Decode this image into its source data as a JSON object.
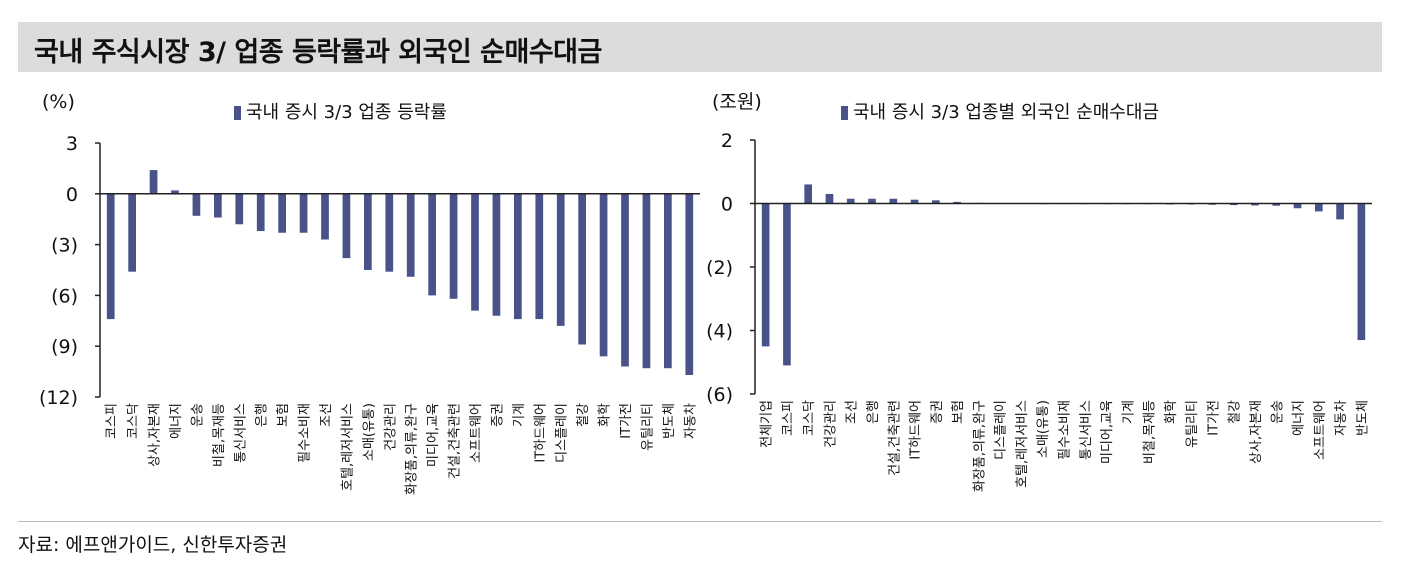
{
  "page": {
    "title": "국내 주식시장 3/ 업종 등락률과 외국인 순매수대금",
    "source": "자료: 에프앤가이드, 신한투자증권"
  },
  "colors": {
    "bar": "#4a5389",
    "axis": "#222222",
    "title_bg": "#dcdcdc"
  },
  "chart_data": [
    {
      "type": "bar",
      "unit": "(%)",
      "legend": "국내 증시 3/3 업종 등락률",
      "ylim": [
        -12,
        3
      ],
      "yticks": [
        3,
        0,
        -3,
        -6,
        -9,
        -12
      ],
      "ytick_labels": [
        "3",
        "0",
        "(3)",
        "(6)",
        "(9)",
        "(12)"
      ],
      "categories": [
        "코스피",
        "코스닥",
        "상사,자본재",
        "에너지",
        "운송",
        "비철,목재등",
        "통신서비스",
        "은행",
        "보험",
        "필수소비재",
        "조선",
        "호텔,레저서비스",
        "소매(유통)",
        "건강관리",
        "화장품,의류,완구",
        "미디어,교육",
        "건설,건축관련",
        "소프트웨어",
        "증권",
        "기계",
        "IT하드웨어",
        "디스플레이",
        "철강",
        "화학",
        "IT가전",
        "유틸리티",
        "반도체",
        "자동차"
      ],
      "values": [
        -7.4,
        -4.6,
        1.4,
        0.2,
        -1.3,
        -1.4,
        -1.8,
        -2.2,
        -2.3,
        -2.3,
        -2.7,
        -3.8,
        -4.5,
        -4.6,
        -4.9,
        -6.0,
        -6.2,
        -6.9,
        -7.2,
        -7.4,
        -7.4,
        -7.8,
        -8.9,
        -9.6,
        -10.2,
        -10.3,
        -10.3,
        -10.7
      ]
    },
    {
      "type": "bar",
      "unit": "(조원)",
      "legend": "국내 증시 3/3 업종별 외국인 순매수대금",
      "ylim": [
        -6,
        2
      ],
      "yticks": [
        2,
        0,
        -2,
        -4,
        -6
      ],
      "ytick_labels": [
        "2",
        "0",
        "(2)",
        "(4)",
        "(6)"
      ],
      "categories": [
        "전체기업",
        "코스피",
        "코스닥",
        "건강관리",
        "조선",
        "은행",
        "건설,건축관련",
        "IT하드웨어",
        "증권",
        "보험",
        "화장품,의류,완구",
        "디스플레이",
        "호텔,레저서비스",
        "소매(유통)",
        "필수소비재",
        "통신서비스",
        "미디어,교육",
        "기계",
        "비철,목재등",
        "화학",
        "유틸리티",
        "IT가전",
        "철강",
        "상사,자본재",
        "운송",
        "에너지",
        "소프트웨어",
        "자동차",
        "반도체"
      ],
      "values": [
        -4.5,
        -5.1,
        0.6,
        0.3,
        0.15,
        0.15,
        0.15,
        0.12,
        0.1,
        0.05,
        0.02,
        0.01,
        0.01,
        0.0,
        0.0,
        -0.01,
        -0.01,
        -0.02,
        -0.02,
        -0.03,
        -0.03,
        -0.04,
        -0.05,
        -0.06,
        -0.07,
        -0.15,
        -0.25,
        -0.5,
        -4.3
      ]
    }
  ]
}
